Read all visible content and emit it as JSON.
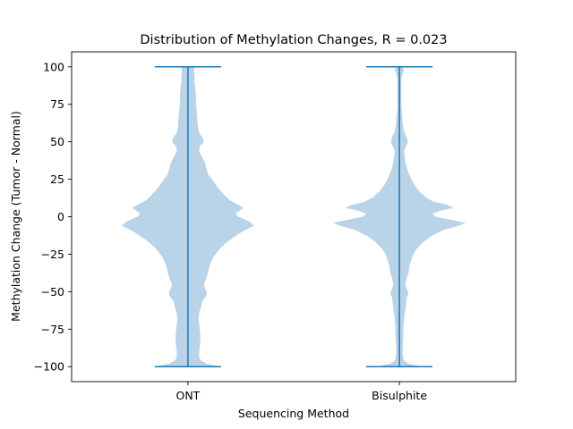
{
  "chart_data": {
    "type": "violin",
    "title": "Distribution of Methylation Changes, R = 0.023",
    "xlabel": "Sequencing Method",
    "ylabel": "Methylation Change (Tumor - Normal)",
    "categories": [
      "ONT",
      "Bisulphite"
    ],
    "ylim": [
      -110,
      110
    ],
    "yticks": [
      100,
      75,
      50,
      25,
      0,
      -25,
      -50,
      -75,
      -100
    ],
    "ytick_labels": [
      "100",
      "75",
      "50",
      "25",
      "0",
      "−25",
      "−50",
      "−75",
      "−100"
    ],
    "grid": false,
    "colors": {
      "violin_fill": "#b9d4e9",
      "line": "#1f77b4"
    },
    "series": [
      {
        "category": "ONT",
        "min": -100,
        "max": 100,
        "density_profile": [
          [
            -100,
            0.49
          ],
          [
            -98,
            0.28
          ],
          [
            -96,
            0.2
          ],
          [
            -94,
            0.17
          ],
          [
            -90,
            0.17
          ],
          [
            -86,
            0.18
          ],
          [
            -80,
            0.19
          ],
          [
            -76,
            0.18
          ],
          [
            -72,
            0.17
          ],
          [
            -68,
            0.16
          ],
          [
            -64,
            0.17
          ],
          [
            -60,
            0.2
          ],
          [
            -56,
            0.22
          ],
          [
            -54,
            0.26
          ],
          [
            -51,
            0.29
          ],
          [
            -48,
            0.26
          ],
          [
            -45,
            0.24
          ],
          [
            -42,
            0.27
          ],
          [
            -38,
            0.3
          ],
          [
            -34,
            0.32
          ],
          [
            -30,
            0.35
          ],
          [
            -26,
            0.4
          ],
          [
            -22,
            0.47
          ],
          [
            -18,
            0.56
          ],
          [
            -14,
            0.68
          ],
          [
            -10,
            0.82
          ],
          [
            -6,
            1.0
          ],
          [
            -3,
            0.92
          ],
          [
            0,
            0.76
          ],
          [
            2,
            0.72
          ],
          [
            4,
            0.78
          ],
          [
            6,
            0.84
          ],
          [
            8,
            0.76
          ],
          [
            11,
            0.63
          ],
          [
            15,
            0.54
          ],
          [
            20,
            0.44
          ],
          [
            24,
            0.38
          ],
          [
            28,
            0.31
          ],
          [
            32,
            0.28
          ],
          [
            36,
            0.26
          ],
          [
            40,
            0.21
          ],
          [
            44,
            0.17
          ],
          [
            47,
            0.18
          ],
          [
            50,
            0.24
          ],
          [
            53,
            0.22
          ],
          [
            56,
            0.17
          ],
          [
            60,
            0.15
          ],
          [
            66,
            0.14
          ],
          [
            72,
            0.13
          ],
          [
            78,
            0.12
          ],
          [
            82,
            0.12
          ],
          [
            86,
            0.11
          ],
          [
            90,
            0.1
          ],
          [
            94,
            0.1
          ],
          [
            97,
            0.09
          ],
          [
            100,
            0.1
          ]
        ]
      },
      {
        "category": "Bisulphite",
        "min": -100,
        "max": 100,
        "density_profile": [
          [
            -100,
            0.34
          ],
          [
            -98,
            0.14
          ],
          [
            -96,
            0.07
          ],
          [
            -92,
            0.05
          ],
          [
            -86,
            0.05
          ],
          [
            -80,
            0.06
          ],
          [
            -74,
            0.06
          ],
          [
            -68,
            0.07
          ],
          [
            -62,
            0.09
          ],
          [
            -58,
            0.1
          ],
          [
            -54,
            0.11
          ],
          [
            -51,
            0.14
          ],
          [
            -48,
            0.11
          ],
          [
            -45,
            0.09
          ],
          [
            -41,
            0.11
          ],
          [
            -37,
            0.14
          ],
          [
            -33,
            0.15
          ],
          [
            -29,
            0.18
          ],
          [
            -25,
            0.21
          ],
          [
            -21,
            0.27
          ],
          [
            -17,
            0.36
          ],
          [
            -13,
            0.48
          ],
          [
            -9,
            0.66
          ],
          [
            -6,
            0.9
          ],
          [
            -4,
            1.0
          ],
          [
            -2,
            0.78
          ],
          [
            0,
            0.55
          ],
          [
            2,
            0.5
          ],
          [
            4,
            0.62
          ],
          [
            6,
            0.82
          ],
          [
            8,
            0.72
          ],
          [
            10,
            0.52
          ],
          [
            13,
            0.4
          ],
          [
            17,
            0.3
          ],
          [
            21,
            0.23
          ],
          [
            25,
            0.18
          ],
          [
            29,
            0.14
          ],
          [
            33,
            0.11
          ],
          [
            37,
            0.09
          ],
          [
            41,
            0.08
          ],
          [
            44,
            0.07
          ],
          [
            47,
            0.1
          ],
          [
            50,
            0.13
          ],
          [
            53,
            0.11
          ],
          [
            57,
            0.07
          ],
          [
            62,
            0.05
          ],
          [
            68,
            0.04
          ],
          [
            74,
            0.03
          ],
          [
            80,
            0.03
          ],
          [
            86,
            0.03
          ],
          [
            92,
            0.03
          ],
          [
            96,
            0.05
          ],
          [
            98,
            0.07
          ],
          [
            100,
            0.04
          ]
        ]
      }
    ]
  }
}
